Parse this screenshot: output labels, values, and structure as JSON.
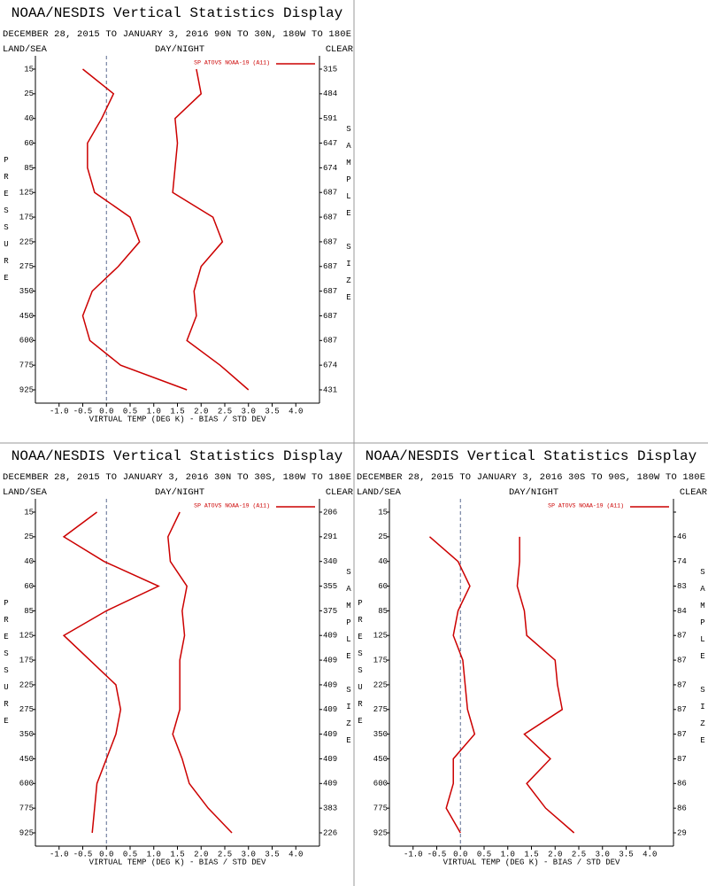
{
  "chart_data": [
    {
      "type": "line",
      "title": "NOAA/NESDIS Vertical Statistics Display",
      "subtitle": "DECEMBER 28, 2015 TO JANUARY 3, 2016  90N TO 30N, 180W TO 180E",
      "corner_labels": {
        "left": "LAND/SEA",
        "center": "DAY/NIGHT",
        "right": "CLEAR"
      },
      "categories": [
        15,
        25,
        40,
        60,
        85,
        125,
        175,
        225,
        275,
        350,
        450,
        600,
        775,
        925
      ],
      "sample_sizes": [
        315,
        484,
        591,
        647,
        674,
        687,
        687,
        687,
        687,
        687,
        687,
        687,
        674,
        431
      ],
      "series": [
        {
          "name": "SP ATOVS NOAA-19 (A11)",
          "color": "#cc0000",
          "values": [
            -0.5,
            0.15,
            -0.1,
            -0.4,
            -0.4,
            -0.25,
            0.5,
            0.7,
            0.25,
            -0.3,
            -0.5,
            -0.35,
            0.3,
            1.7
          ]
        },
        {
          "color": "#cc0000",
          "values": [
            1.9,
            2.0,
            1.45,
            1.5,
            1.45,
            1.4,
            2.25,
            2.45,
            2.0,
            1.85,
            1.9,
            1.7,
            2.4,
            3.0
          ]
        }
      ],
      "xlim": [
        -1.5,
        4.5
      ],
      "xticks": [
        {
          "value": -1,
          "label": "-1.0"
        },
        -0.5,
        {
          "value": 0,
          "label": "0.0"
        },
        0.5,
        {
          "value": 1,
          "label": "1.0"
        },
        1.5,
        {
          "value": 2,
          "label": "2.0"
        },
        2.5,
        {
          "value": 3,
          "label": "3.0"
        },
        3.5,
        {
          "value": 4,
          "label": "4.0"
        }
      ],
      "vline": 0,
      "xlabel": "VIRTUAL TEMP (DEG K) - BIAS / STD DEV",
      "ylabel": "PRESSURE",
      "y2label": "SAMPLE SIZE"
    },
    {
      "type": "line",
      "title": "NOAA/NESDIS Vertical Statistics Display",
      "subtitle": "DECEMBER 28, 2015 TO JANUARY 3, 2016  30N TO 30S, 180W TO 180E",
      "corner_labels": {
        "left": "LAND/SEA",
        "center": "DAY/NIGHT",
        "right": "CLEAR"
      },
      "categories": [
        15,
        25,
        40,
        60,
        85,
        125,
        175,
        225,
        275,
        350,
        450,
        600,
        775,
        925
      ],
      "sample_sizes": [
        206,
        291,
        340,
        355,
        375,
        409,
        409,
        409,
        409,
        409,
        409,
        409,
        383,
        226
      ],
      "series": [
        {
          "name": "SP ATOVS NOAA-19 (A11)",
          "color": "#cc0000",
          "values": [
            -0.2,
            -0.9,
            -0.05,
            1.1,
            0,
            -0.9,
            -0.35,
            0.2,
            0.3,
            0.2,
            0,
            -0.2,
            -0.25,
            -0.3
          ]
        },
        {
          "color": "#cc0000",
          "values": [
            1.55,
            1.3,
            1.35,
            1.7,
            1.6,
            1.65,
            1.55,
            1.55,
            1.55,
            1.4,
            1.6,
            1.75,
            2.15,
            2.65
          ]
        }
      ],
      "xlim": [
        -1.5,
        4.5
      ],
      "xticks": [
        {
          "value": -1,
          "label": "-1.0"
        },
        -0.5,
        {
          "value": 0,
          "label": "0.0"
        },
        0.5,
        {
          "value": 1,
          "label": "1.0"
        },
        1.5,
        {
          "value": 2,
          "label": "2.0"
        },
        2.5,
        {
          "value": 3,
          "label": "3.0"
        },
        3.5,
        {
          "value": 4,
          "label": "4.0"
        }
      ],
      "vline": 0,
      "xlabel": "VIRTUAL TEMP (DEG K) - BIAS / STD DEV",
      "ylabel": "PRESSURE",
      "y2label": "SAMPLE SIZE"
    },
    {
      "type": "line",
      "title": "NOAA/NESDIS Vertical Statistics Display",
      "subtitle": "DECEMBER 28, 2015 TO JANUARY 3, 2016  30S TO 90S, 180W TO 180E",
      "corner_labels": {
        "left": "LAND/SEA",
        "center": "DAY/NIGHT",
        "right": "CLEAR"
      },
      "categories": [
        15,
        25,
        40,
        60,
        85,
        125,
        175,
        225,
        275,
        350,
        450,
        600,
        775,
        925
      ],
      "sample_sizes": [
        null,
        46,
        74,
        83,
        84,
        87,
        87,
        87,
        87,
        87,
        87,
        86,
        86,
        29
      ],
      "series": [
        {
          "name": "SP ATOVS NOAA-19 (A11)",
          "color": "#cc0000",
          "values": [
            null,
            -0.65,
            -0.05,
            0.2,
            -0.05,
            -0.15,
            0.05,
            0.1,
            0.15,
            0.3,
            -0.15,
            -0.15,
            -0.3,
            0
          ]
        },
        {
          "color": "#cc0000",
          "values": [
            null,
            1.25,
            1.25,
            1.2,
            1.35,
            1.4,
            2.0,
            2.05,
            2.15,
            1.35,
            1.9,
            1.4,
            1.8,
            2.4
          ]
        }
      ],
      "xlim": [
        -1.5,
        4.5
      ],
      "xticks": [
        {
          "value": -1,
          "label": "-1.0"
        },
        -0.5,
        {
          "value": 0,
          "label": "0.0"
        },
        0.5,
        {
          "value": 1,
          "label": "1.0"
        },
        1.5,
        {
          "value": 2,
          "label": "2.0"
        },
        2.5,
        {
          "value": 3,
          "label": "3.0"
        },
        3.5,
        {
          "value": 4,
          "label": "4.0"
        }
      ],
      "vline": 0,
      "xlabel": "VIRTUAL TEMP (DEG K) - BIAS / STD DEV",
      "ylabel": "PRESSURE",
      "y2label": "SAMPLE SIZE"
    }
  ]
}
